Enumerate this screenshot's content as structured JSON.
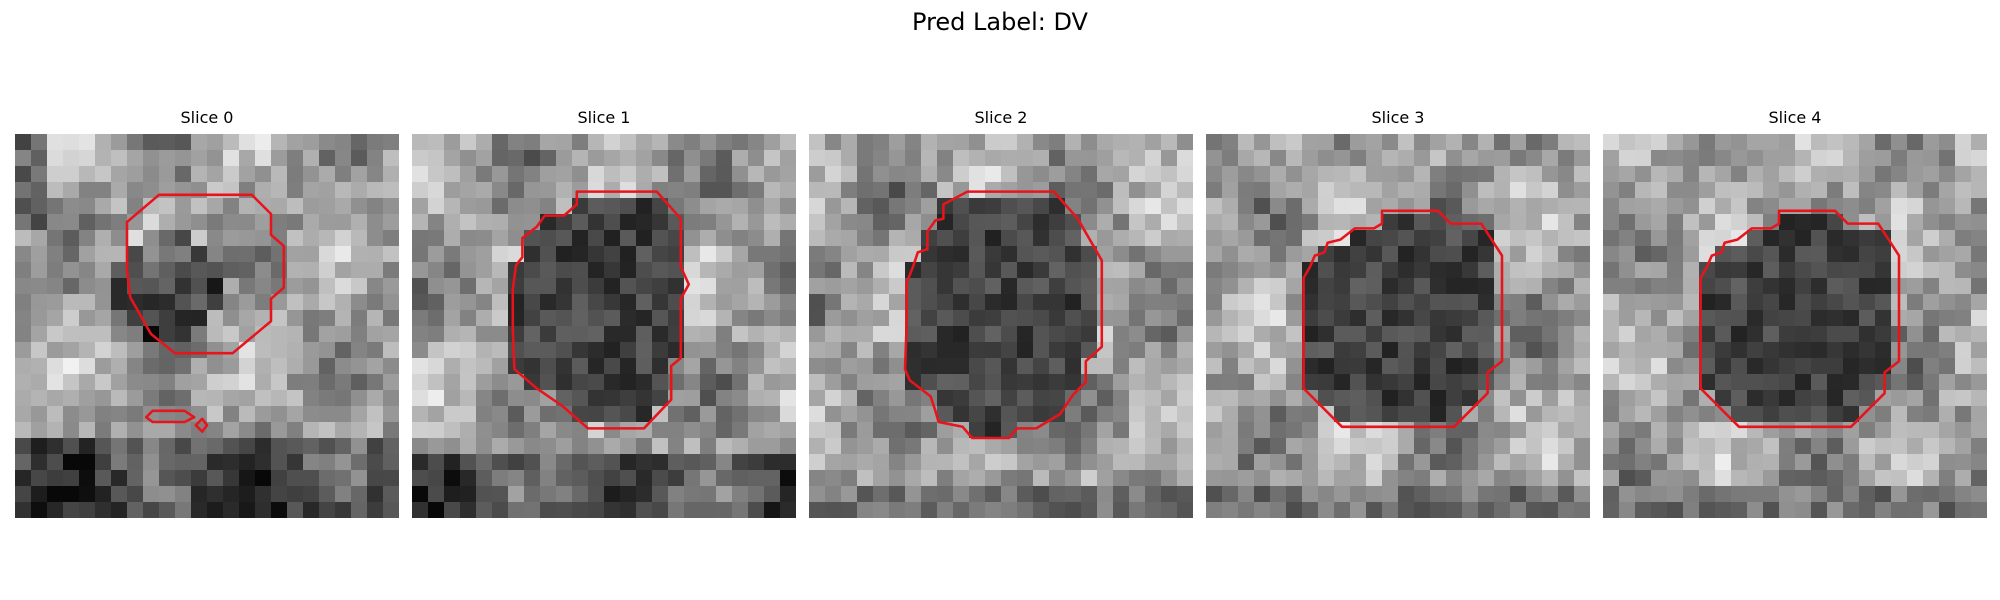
{
  "figure": {
    "title": "Pred Label: DV",
    "colormap": "gray",
    "contour_color": "#e8141c",
    "grid_size": 24
  },
  "slices": [
    {
      "title": "Slice 0",
      "contours": [
        [
          [
            7.0,
            5.5
          ],
          [
            9.0,
            3.8
          ],
          [
            14.8,
            3.8
          ],
          [
            16.0,
            5.0
          ],
          [
            16.0,
            6.3
          ],
          [
            16.8,
            7.0
          ],
          [
            16.8,
            9.6
          ],
          [
            16.0,
            10.3
          ],
          [
            16.0,
            11.7
          ],
          [
            13.6,
            13.7
          ],
          [
            10.0,
            13.7
          ],
          [
            8.5,
            12.5
          ],
          [
            7.2,
            10.2
          ],
          [
            7.0,
            8.5
          ]
        ],
        [
          [
            8.6,
            17.3
          ],
          [
            10.6,
            17.3
          ],
          [
            11.2,
            17.7
          ],
          [
            10.6,
            18.0
          ],
          [
            8.6,
            18.0
          ],
          [
            8.2,
            17.7
          ]
        ],
        [
          [
            11.3,
            18.2
          ],
          [
            11.7,
            17.8
          ],
          [
            12.0,
            18.2
          ],
          [
            11.7,
            18.6
          ]
        ]
      ]
    },
    {
      "title": "Slice 1",
      "contours": [
        [
          [
            6.3,
            9.7
          ],
          [
            6.5,
            8.2
          ],
          [
            6.9,
            7.7
          ],
          [
            6.9,
            6.5
          ],
          [
            7.8,
            5.8
          ],
          [
            8.3,
            5.1
          ],
          [
            9.5,
            5.1
          ],
          [
            10.3,
            4.4
          ],
          [
            10.3,
            3.6
          ],
          [
            13.0,
            3.6
          ],
          [
            15.3,
            3.6
          ],
          [
            16.8,
            5.3
          ],
          [
            16.8,
            8.3
          ],
          [
            17.3,
            9.4
          ],
          [
            16.8,
            10.3
          ],
          [
            16.8,
            14.0
          ],
          [
            16.2,
            14.5
          ],
          [
            16.2,
            16.6
          ],
          [
            14.5,
            18.4
          ],
          [
            11.0,
            18.4
          ],
          [
            9.4,
            17.0
          ],
          [
            7.8,
            15.9
          ],
          [
            6.4,
            14.7
          ],
          [
            6.3,
            12.2
          ]
        ]
      ]
    },
    {
      "title": "Slice 2",
      "contours": [
        [
          [
            6.1,
            9.3
          ],
          [
            6.5,
            8.3
          ],
          [
            6.8,
            7.4
          ],
          [
            7.4,
            7.2
          ],
          [
            7.4,
            6.1
          ],
          [
            7.9,
            5.4
          ],
          [
            8.4,
            5.3
          ],
          [
            8.4,
            4.4
          ],
          [
            9.9,
            3.6
          ],
          [
            15.3,
            3.6
          ],
          [
            16.8,
            5.3
          ],
          [
            18.3,
            7.9
          ],
          [
            18.3,
            13.3
          ],
          [
            17.3,
            14.2
          ],
          [
            17.3,
            15.5
          ],
          [
            16.5,
            16.3
          ],
          [
            15.7,
            17.5
          ],
          [
            14.2,
            18.4
          ],
          [
            13.0,
            18.4
          ],
          [
            12.5,
            19.0
          ],
          [
            10.2,
            19.0
          ],
          [
            9.6,
            18.3
          ],
          [
            8.1,
            18.0
          ],
          [
            7.9,
            17.3
          ],
          [
            7.6,
            16.4
          ],
          [
            6.3,
            15.4
          ],
          [
            6.0,
            14.7
          ],
          [
            6.1,
            12.0
          ]
        ]
      ]
    },
    {
      "title": "Slice 3",
      "contours": [
        [
          [
            6.1,
            9.0
          ],
          [
            6.5,
            8.3
          ],
          [
            6.8,
            7.6
          ],
          [
            7.4,
            7.4
          ],
          [
            7.6,
            6.8
          ],
          [
            8.4,
            6.6
          ],
          [
            9.3,
            5.9
          ],
          [
            10.5,
            5.9
          ],
          [
            11.0,
            5.6
          ],
          [
            11.0,
            4.8
          ],
          [
            14.5,
            4.8
          ],
          [
            15.3,
            5.6
          ],
          [
            17.2,
            5.6
          ],
          [
            18.5,
            7.6
          ],
          [
            18.5,
            14.2
          ],
          [
            17.6,
            14.9
          ],
          [
            17.6,
            16.2
          ],
          [
            15.5,
            18.3
          ],
          [
            8.5,
            18.3
          ],
          [
            6.1,
            15.9
          ]
        ]
      ]
    },
    {
      "title": "Slice 4",
      "contours": [
        [
          [
            6.1,
            9.0
          ],
          [
            6.5,
            8.3
          ],
          [
            6.8,
            7.6
          ],
          [
            7.4,
            7.4
          ],
          [
            7.6,
            6.8
          ],
          [
            8.4,
            6.6
          ],
          [
            9.3,
            5.9
          ],
          [
            10.5,
            5.9
          ],
          [
            11.0,
            5.6
          ],
          [
            11.0,
            4.8
          ],
          [
            14.5,
            4.8
          ],
          [
            15.3,
            5.6
          ],
          [
            17.2,
            5.6
          ],
          [
            18.5,
            7.6
          ],
          [
            18.5,
            14.2
          ],
          [
            17.6,
            14.9
          ],
          [
            17.6,
            16.2
          ],
          [
            15.5,
            18.3
          ],
          [
            8.5,
            18.3
          ],
          [
            6.1,
            15.9
          ]
        ]
      ]
    }
  ]
}
